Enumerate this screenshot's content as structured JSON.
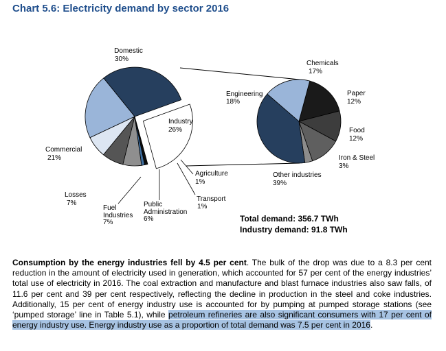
{
  "title": "Chart 5.6: Electricity demand by sector 2016",
  "chart_data": [
    {
      "type": "pie",
      "name": "Electricity demand by sector",
      "slices": [
        {
          "label": "Domestic",
          "value": 30,
          "value_label": "30%",
          "color": "#263f5e"
        },
        {
          "label": "Industry",
          "value": 26,
          "value_label": "26%",
          "color": "#ffffff",
          "exploded": true
        },
        {
          "label": "Agriculture",
          "value": 1,
          "value_label": "1%",
          "color": "#0d0d0d"
        },
        {
          "label": "Transport",
          "value": 1,
          "value_label": "1%",
          "color": "#3f6fa0"
        },
        {
          "label": "Public Administration",
          "value": 6,
          "value_label": "6%",
          "color": "#8f8f8f"
        },
        {
          "label": "Fuel Industries",
          "value": 7,
          "value_label": "7%",
          "color": "#555555"
        },
        {
          "label": "Losses",
          "value": 7,
          "value_label": "7%",
          "color": "#dde6f2"
        },
        {
          "label": "Commercial",
          "value": 21,
          "value_label": "21%",
          "color": "#9ab5d9"
        }
      ]
    },
    {
      "type": "pie",
      "name": "Industry breakdown",
      "slices": [
        {
          "label": "Chemicals",
          "value": 17,
          "value_label": "17%",
          "color": "#1a1a1a"
        },
        {
          "label": "Paper",
          "value": 12,
          "value_label": "12%",
          "color": "#3d3d3d"
        },
        {
          "label": "Food",
          "value": 12,
          "value_label": "12%",
          "color": "#5f5f5f"
        },
        {
          "label": "Iron & Steel",
          "value": 3,
          "value_label": "3%",
          "color": "#8c8c8c"
        },
        {
          "label": "Other industries",
          "value": 39,
          "value_label": "39%",
          "color": "#263f5e"
        },
        {
          "label": "Engineering",
          "value": 18,
          "value_label": "18%",
          "color": "#9ab5d9"
        }
      ]
    }
  ],
  "totals": {
    "total": "Total demand: 356.7 TWh",
    "industry": "Industry demand: 91.8 TWh"
  },
  "paragraph": {
    "lead": "Consumption by the energy industries fell by 4.5 per cent",
    "body": ". The bulk of the drop was due to a 8.3 per cent reduction in the amount of electricity used in generation, which accounted for 57 per cent of the energy industries’ total use of electricity in 2016. The coal extraction and manufacture and blast furnace industries also saw falls, of 11.6 per cent and 39 per cent respectively, reflecting the decline in production in the steel and coke industries. Additionally, 15 per cent of energy industry use is accounted for by pumping at pumped storage stations (see ‘pumped storage’ line in Table 5.1), while ",
    "highlight": "petroleum refineries are also significant consumers with 17 per cent of energy industry use. Energy industry use as a proportion of total demand was 7.5 per cent in 2016",
    "end": "."
  }
}
